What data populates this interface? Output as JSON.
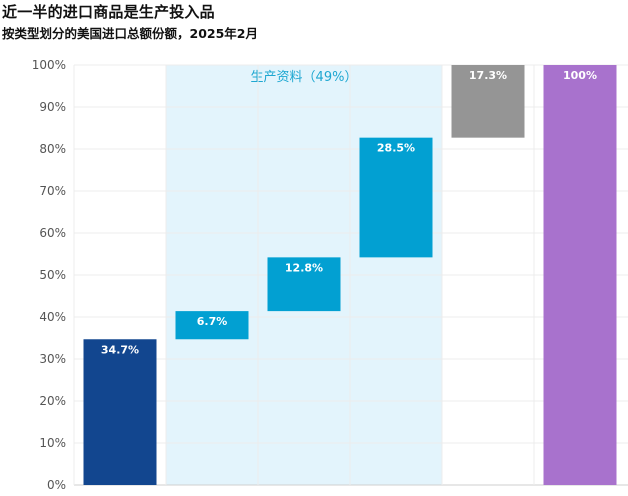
{
  "title": "近一半的进口商品是生产投入品",
  "subtitle": "按类型划分的美国进口总额份额，2025年2月",
  "chart_data": {
    "type": "bar",
    "subtype": "waterfall",
    "yticks": [
      "0%",
      "10%",
      "20%",
      "30%",
      "40%",
      "50%",
      "60%",
      "70%",
      "80%",
      "90%",
      "100%"
    ],
    "ylim": [
      0,
      100
    ],
    "grid": true,
    "bars": [
      {
        "start": 0,
        "end": 34.7,
        "label": "34.7%",
        "color": "#12468f"
      },
      {
        "start": 34.7,
        "end": 41.4,
        "label": "6.7%",
        "color": "#02a0d2"
      },
      {
        "start": 41.4,
        "end": 54.2,
        "label": "12.8%",
        "color": "#02a0d2"
      },
      {
        "start": 54.2,
        "end": 82.7,
        "label": "28.5%",
        "color": "#02a0d2"
      },
      {
        "start": 82.7,
        "end": 100,
        "label": "17.3%",
        "color": "#959595"
      },
      {
        "start": 0,
        "end": 100,
        "label": "100%",
        "color": "#a872cd"
      }
    ],
    "highlight_region": {
      "label": "生产资料（49%）",
      "from_bar": 1,
      "to_bar": 3,
      "color": "#e3f4fc"
    }
  }
}
